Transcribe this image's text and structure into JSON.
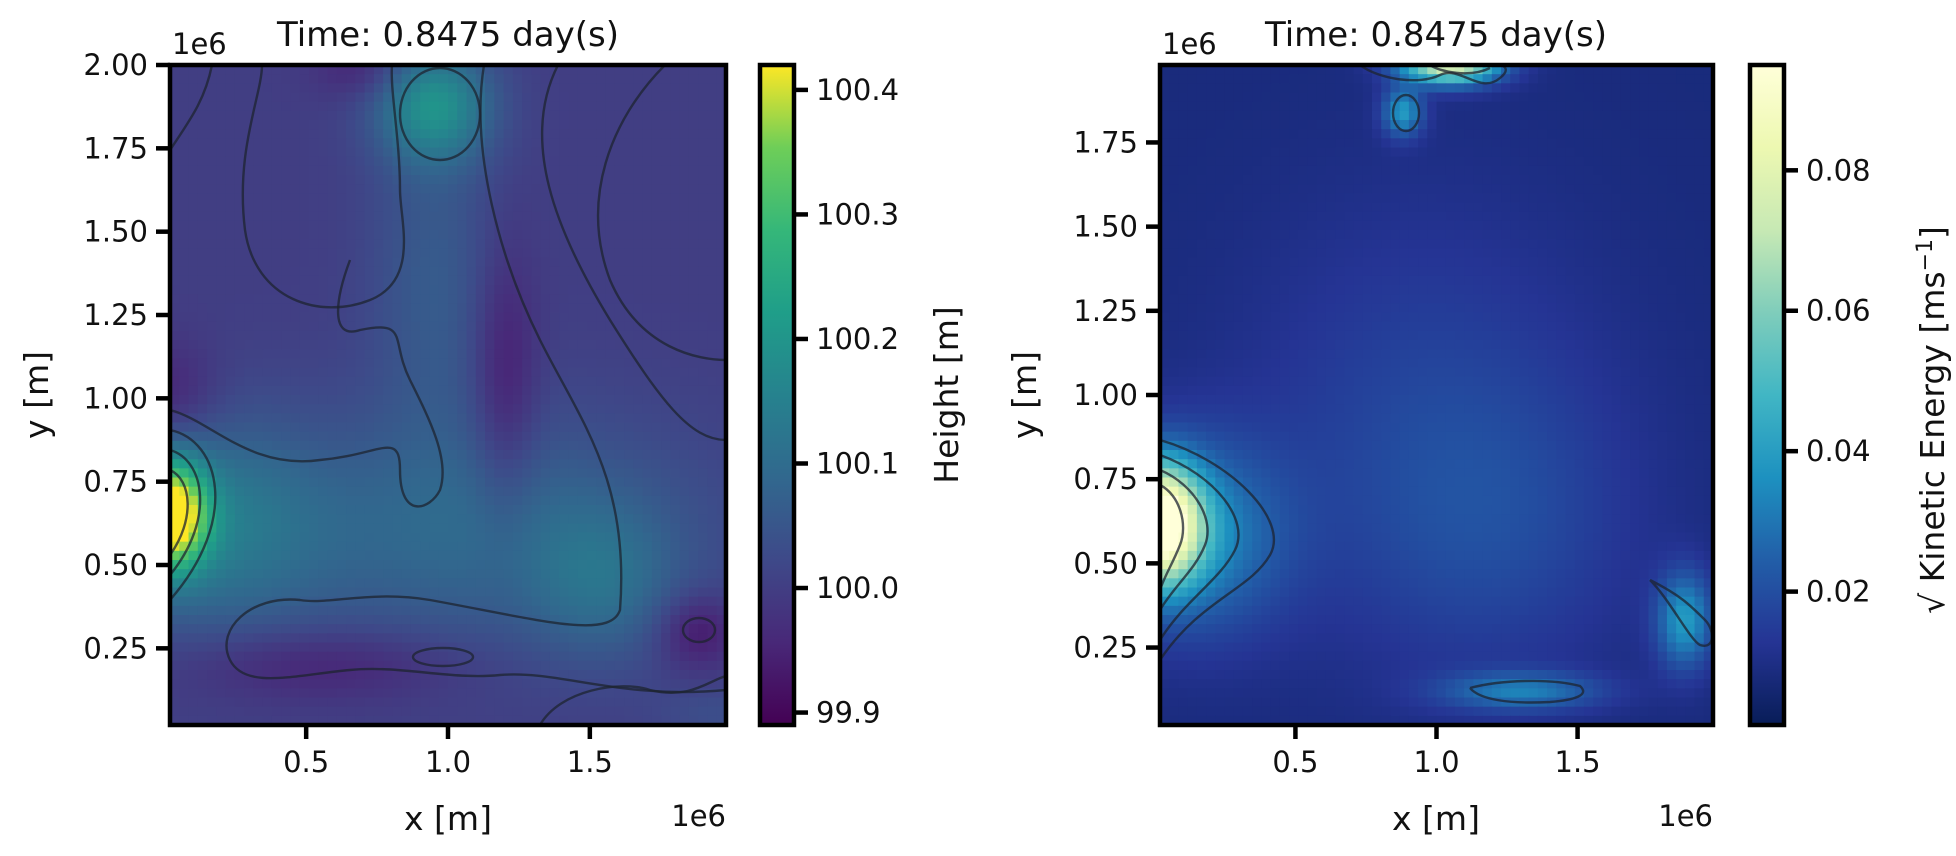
{
  "chart_data": [
    {
      "type": "heatmap",
      "title": "Time: 0.8475 day(s)",
      "xlabel": "x [m]",
      "ylabel": "y [m]",
      "x_offset_text": "1e6",
      "y_offset_text": "1e6",
      "xlim": [
        0.02,
        1.98
      ],
      "ylim": [
        0.02,
        2.0
      ],
      "x_ticks": [
        0.5,
        1.0,
        1.5
      ],
      "x_tick_labels": [
        "0.5",
        "1.0",
        "1.5"
      ],
      "y_ticks": [
        0.25,
        0.5,
        0.75,
        1.0,
        1.25,
        1.5,
        1.75,
        2.0
      ],
      "y_tick_labels": [
        "0.25",
        "0.50",
        "0.75",
        "1.00",
        "1.25",
        "1.50",
        "1.75",
        "2.00"
      ],
      "colormap": "viridis",
      "colorbar": {
        "label": "Height [m]",
        "range": [
          99.89,
          100.42
        ],
        "ticks": [
          99.9,
          100.0,
          100.1,
          100.2,
          100.3,
          100.4
        ],
        "tick_labels": [
          "99.9",
          "100.0",
          "100.1",
          "100.2",
          "100.3",
          "100.4"
        ]
      },
      "background_value": 100.0,
      "features": [
        {
          "x": 0.02,
          "y": 0.65,
          "sx": 0.09,
          "sy": 0.11,
          "value": 0.42
        },
        {
          "x": 0.15,
          "y": 0.62,
          "sx": 0.28,
          "sy": 0.22,
          "value": 0.12
        },
        {
          "x": 0.95,
          "y": 1.88,
          "sx": 0.14,
          "sy": 0.12,
          "value": 0.18
        },
        {
          "x": 0.95,
          "y": 1.35,
          "sx": 0.16,
          "sy": 0.35,
          "value": 0.06
        },
        {
          "x": 1.1,
          "y": 0.6,
          "sx": 0.55,
          "sy": 0.25,
          "value": 0.09
        },
        {
          "x": 1.55,
          "y": 0.45,
          "sx": 0.18,
          "sy": 0.16,
          "value": 0.07
        },
        {
          "x": 1.2,
          "y": 1.05,
          "sx": 0.08,
          "sy": 0.28,
          "value": -0.07
        },
        {
          "x": 0.55,
          "y": 0.2,
          "sx": 0.35,
          "sy": 0.08,
          "value": -0.06
        },
        {
          "x": 1.88,
          "y": 0.3,
          "sx": 0.1,
          "sy": 0.08,
          "value": -0.08
        },
        {
          "x": 0.02,
          "y": 1.0,
          "sx": 0.12,
          "sy": 0.12,
          "value": -0.06
        },
        {
          "x": 0.7,
          "y": 1.98,
          "sx": 0.12,
          "sy": 0.06,
          "value": -0.05
        },
        {
          "x": 1.95,
          "y": 0.05,
          "sx": 0.15,
          "sy": 0.06,
          "value": 0.03
        }
      ]
    },
    {
      "type": "heatmap",
      "title": "Time: 0.8475 day(s)",
      "xlabel": "x [m]",
      "ylabel": "y [m]",
      "x_offset_text": "1e6",
      "y_offset_text": "1e6",
      "xlim": [
        0.02,
        1.98
      ],
      "ylim": [
        0.02,
        1.98
      ],
      "x_ticks": [
        0.5,
        1.0,
        1.5
      ],
      "x_tick_labels": [
        "0.5",
        "1.0",
        "1.5"
      ],
      "y_ticks": [
        0.25,
        0.5,
        0.75,
        1.0,
        1.25,
        1.5,
        1.75
      ],
      "y_tick_labels": [
        "0.25",
        "0.50",
        "0.75",
        "1.00",
        "1.25",
        "1.50",
        "1.75"
      ],
      "colormap": "YlGnBu_r",
      "colorbar": {
        "label": "√ Kinetic Energy [ms",
        "label_sup": "−1",
        "label_end": "]",
        "range": [
          0.001,
          0.095
        ],
        "ticks": [
          0.02,
          0.04,
          0.06,
          0.08
        ],
        "tick_labels": [
          "0.02",
          "0.04",
          "0.06",
          "0.08"
        ]
      },
      "background_value": 0.008,
      "features": [
        {
          "x": 0.02,
          "y": 0.62,
          "sx": 0.1,
          "sy": 0.12,
          "value": 0.087
        },
        {
          "x": 0.15,
          "y": 0.58,
          "sx": 0.22,
          "sy": 0.2,
          "value": 0.025
        },
        {
          "x": 1.05,
          "y": 1.98,
          "sx": 0.12,
          "sy": 0.04,
          "value": 0.07
        },
        {
          "x": 0.88,
          "y": 1.84,
          "sx": 0.05,
          "sy": 0.05,
          "value": 0.03
        },
        {
          "x": 1.88,
          "y": 0.33,
          "sx": 0.07,
          "sy": 0.1,
          "value": 0.03
        },
        {
          "x": 1.3,
          "y": 0.12,
          "sx": 0.2,
          "sy": 0.04,
          "value": 0.022
        },
        {
          "x": 0.95,
          "y": 0.95,
          "sx": 0.45,
          "sy": 0.45,
          "value": 0.008
        },
        {
          "x": 1.2,
          "y": 0.6,
          "sx": 0.35,
          "sy": 0.3,
          "value": 0.008
        }
      ]
    }
  ]
}
